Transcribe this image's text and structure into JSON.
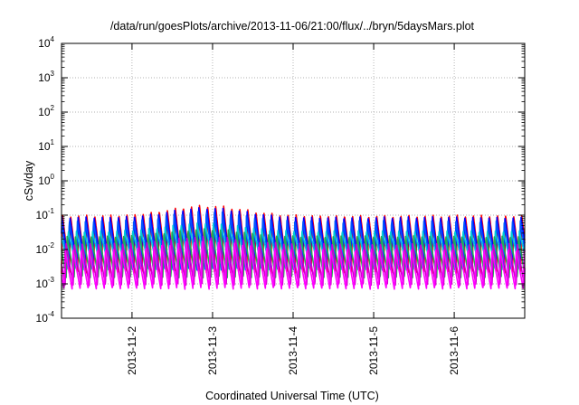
{
  "chart_data": {
    "type": "line",
    "title": "/data/run/goesPlots/archive/2013-11-06/21:00/flux/../bryn/5daysMars.plot",
    "xlabel": "Coordinated Universal Time (UTC)",
    "ylabel": "cSv/day",
    "x_range": [
      "2013-11-01T03:00",
      "2013-11-06T21:00"
    ],
    "ylim": [
      0.0001,
      10000
    ],
    "yscale": "log",
    "grid": true,
    "x_ticks": [
      "2013-11-2",
      "2013-11-3",
      "2013-11-4",
      "2013-11-5",
      "2013-11-6"
    ],
    "y_ticks": [
      {
        "base": "10",
        "exp": "4"
      },
      {
        "base": "10",
        "exp": "3"
      },
      {
        "base": "10",
        "exp": "2"
      },
      {
        "base": "10",
        "exp": "1"
      },
      {
        "base": "10",
        "exp": "0"
      },
      {
        "base": "10",
        "exp": "-1"
      },
      {
        "base": "10",
        "exp": "-2"
      },
      {
        "base": "10",
        "exp": "-3"
      },
      {
        "base": "10",
        "exp": "-4"
      }
    ],
    "series": [
      {
        "color": "#ff0000",
        "peak": 0.1,
        "trough": 0.002,
        "peak_bump": 0.2,
        "phase": 0.0
      },
      {
        "color": "#0000ff",
        "peak": 0.09,
        "trough": 0.003,
        "peak_bump": 0.17,
        "phase": 0.08
      },
      {
        "color": "#0055ff",
        "peak": 0.07,
        "trough": 0.0025,
        "peak_bump": 0.13,
        "phase": 0.16
      },
      {
        "color": "#00c8d8",
        "peak": 0.035,
        "trough": 0.004,
        "peak_bump": 0.06,
        "phase": 0.28
      },
      {
        "color": "#22aa55",
        "peak": 0.025,
        "trough": 0.0015,
        "peak_bump": 0.04,
        "phase": 0.42
      },
      {
        "color": "#cc00cc",
        "peak": 0.015,
        "trough": 0.0009,
        "peak_bump": 0.025,
        "phase": 0.55
      },
      {
        "color": "#ff00ff",
        "peak": 0.01,
        "trough": 0.0007,
        "peak_bump": 0.018,
        "phase": 0.68
      }
    ],
    "cycles_per_day": 10,
    "bump_center": "2013-11-02T22:00",
    "bump_width_hours": 14
  }
}
